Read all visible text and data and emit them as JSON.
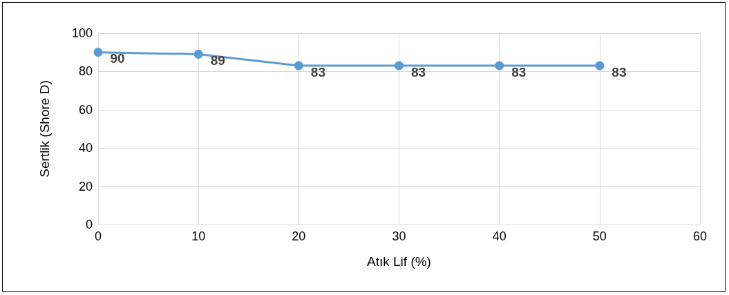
{
  "chart_data": {
    "type": "line",
    "xlabel": "Atık Lif (%)",
    "ylabel": "Sertlik (Shore D)",
    "x": [
      0,
      10,
      20,
      30,
      40,
      50
    ],
    "series": [
      {
        "color": "#5b9bd5",
        "values": [
          90,
          89,
          83,
          83,
          83,
          83
        ]
      }
    ],
    "xlim": [
      0,
      60
    ],
    "xticks": [
      0,
      10,
      20,
      30,
      40,
      50,
      60
    ],
    "ylim": [
      0,
      100
    ],
    "yticks": [
      0,
      20,
      40,
      60,
      80,
      100
    ],
    "grid": true,
    "marker": "circle",
    "line_style": "solid",
    "data_labels": true
  }
}
